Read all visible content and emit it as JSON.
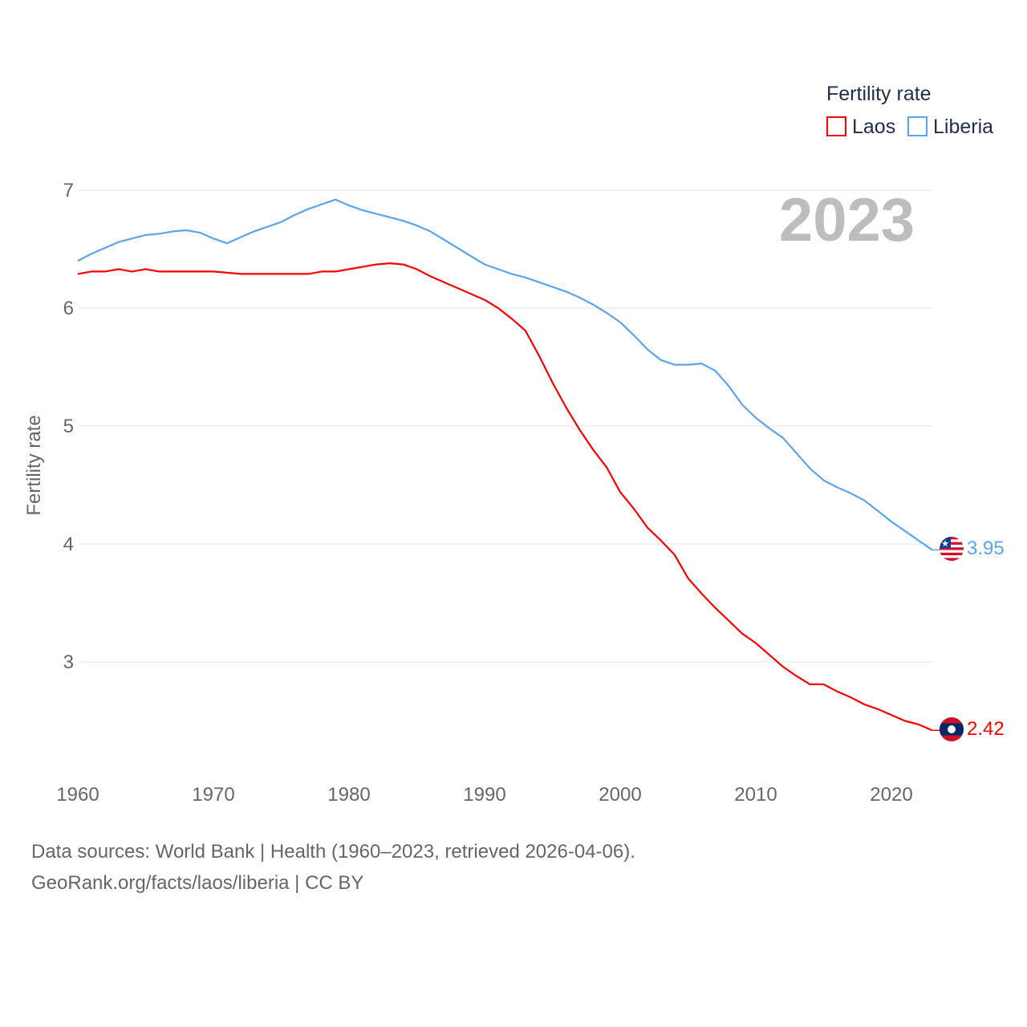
{
  "chart_data": {
    "type": "line",
    "title": "",
    "year_label": "2023",
    "xlabel": "",
    "ylabel": "Fertility rate",
    "xlim": [
      1960,
      2023
    ],
    "ylim": [
      2.3,
      7.1
    ],
    "x_ticks": [
      "1960",
      "1970",
      "1980",
      "1990",
      "2000",
      "2010",
      "2020"
    ],
    "y_ticks": [
      "3",
      "4",
      "5",
      "6",
      "7"
    ],
    "grid": true,
    "legend": {
      "title": "Fertility rate",
      "position": "top-right"
    },
    "x": [
      1960,
      1961,
      1962,
      1963,
      1964,
      1965,
      1966,
      1967,
      1968,
      1969,
      1970,
      1971,
      1972,
      1973,
      1974,
      1975,
      1976,
      1977,
      1978,
      1979,
      1980,
      1981,
      1982,
      1983,
      1984,
      1985,
      1986,
      1987,
      1988,
      1989,
      1990,
      1991,
      1992,
      1993,
      1994,
      1995,
      1996,
      1997,
      1998,
      1999,
      2000,
      2001,
      2002,
      2003,
      2004,
      2005,
      2006,
      2007,
      2008,
      2009,
      2010,
      2011,
      2012,
      2013,
      2014,
      2015,
      2016,
      2017,
      2018,
      2019,
      2020,
      2021,
      2022,
      2023
    ],
    "series": [
      {
        "name": "Laos",
        "color": "#ff0000",
        "end_label": "2.42",
        "flag": "laos-flag",
        "values": [
          6.29,
          6.31,
          6.31,
          6.33,
          6.31,
          6.33,
          6.31,
          6.31,
          6.31,
          6.31,
          6.31,
          6.3,
          6.29,
          6.29,
          6.29,
          6.29,
          6.29,
          6.29,
          6.31,
          6.31,
          6.33,
          6.35,
          6.37,
          6.38,
          6.37,
          6.33,
          6.27,
          6.22,
          6.17,
          6.12,
          6.07,
          6.0,
          5.91,
          5.81,
          5.6,
          5.37,
          5.16,
          4.97,
          4.8,
          4.65,
          4.44,
          4.3,
          4.14,
          4.03,
          3.91,
          3.71,
          3.58,
          3.46,
          3.35,
          3.24,
          3.16,
          3.06,
          2.96,
          2.88,
          2.81,
          2.81,
          2.75,
          2.7,
          2.64,
          2.6,
          2.55,
          2.5,
          2.47,
          2.42
        ]
      },
      {
        "name": "Liberia",
        "color": "#5ba5ef",
        "end_label": "3.95",
        "flag": "liberia-flag",
        "values": [
          6.4,
          6.46,
          6.51,
          6.56,
          6.59,
          6.62,
          6.63,
          6.65,
          6.66,
          6.64,
          6.59,
          6.55,
          6.6,
          6.65,
          6.69,
          6.73,
          6.79,
          6.84,
          6.88,
          6.92,
          6.87,
          6.83,
          6.8,
          6.77,
          6.74,
          6.7,
          6.65,
          6.58,
          6.51,
          6.44,
          6.37,
          6.33,
          6.29,
          6.26,
          6.22,
          6.18,
          6.14,
          6.09,
          6.03,
          5.96,
          5.88,
          5.77,
          5.65,
          5.56,
          5.52,
          5.52,
          5.53,
          5.47,
          5.34,
          5.18,
          5.07,
          4.98,
          4.9,
          4.77,
          4.64,
          4.54,
          4.48,
          4.43,
          4.37,
          4.28,
          4.19,
          4.11,
          4.03,
          3.95
        ]
      }
    ]
  },
  "footer": {
    "line1": "Data sources: World Bank | Health (1960–2023, retrieved 2026-04-06).",
    "line2": "GeoRank.org/facts/laos/liberia | CC BY"
  }
}
